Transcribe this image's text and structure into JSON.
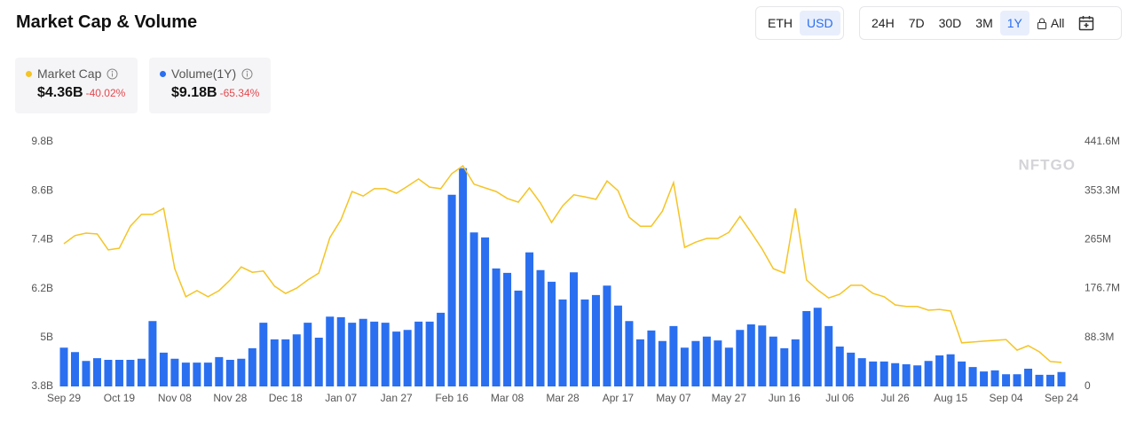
{
  "header": {
    "title": "Market Cap & Volume",
    "currency_options": [
      "ETH",
      "USD"
    ],
    "selected_currency": "USD",
    "range_options": [
      "24H",
      "7D",
      "30D",
      "3M",
      "1Y",
      "All"
    ],
    "selected_range": "1Y"
  },
  "summary": [
    {
      "value": "$4.36B",
      "change": "-40.02%"
    },
    {
      "value": "$9.18B",
      "change": "-65.34%"
    }
  ],
  "watermark": "NFTGO",
  "chart_data": {
    "type": "combo",
    "categories": [
      "Sep 29",
      null,
      null,
      null,
      null,
      "Oct 19",
      null,
      null,
      null,
      null,
      "Nov 08",
      null,
      null,
      null,
      null,
      "Nov 28",
      null,
      null,
      null,
      null,
      "Dec 18",
      null,
      null,
      null,
      null,
      "Jan 07",
      null,
      null,
      null,
      null,
      "Jan 27",
      null,
      null,
      null,
      null,
      "Feb 16",
      null,
      null,
      null,
      null,
      "Mar 08",
      null,
      null,
      null,
      null,
      "Mar 28",
      null,
      null,
      null,
      null,
      "Apr 17",
      null,
      null,
      null,
      null,
      "May 07",
      null,
      null,
      null,
      null,
      "May 27",
      null,
      null,
      null,
      null,
      "Jun 16",
      null,
      null,
      null,
      null,
      "Jul 06",
      null,
      null,
      null,
      null,
      "Jul 26",
      null,
      null,
      null,
      null,
      "Aug 15",
      null,
      null,
      null,
      null,
      "Sep 04",
      null,
      null,
      null,
      null,
      "Sep 24"
    ],
    "series": [
      {
        "name": "Market Cap",
        "type": "line",
        "axis": "y",
        "color": "#f5c425",
        "values": [
          7.3,
          7.5,
          7.56,
          7.54,
          7.15,
          7.19,
          7.73,
          8.02,
          8.02,
          8.17,
          6.69,
          6.0,
          6.15,
          6.0,
          6.15,
          6.41,
          6.73,
          6.6,
          6.63,
          6.26,
          6.08,
          6.21,
          6.41,
          6.58,
          7.45,
          7.89,
          8.58,
          8.47,
          8.65,
          8.65,
          8.54,
          8.71,
          8.89,
          8.69,
          8.65,
          9.02,
          9.21,
          8.76,
          8.67,
          8.58,
          8.41,
          8.32,
          8.67,
          8.3,
          7.82,
          8.23,
          8.5,
          8.45,
          8.39,
          8.84,
          8.6,
          7.95,
          7.73,
          7.73,
          8.1,
          8.8,
          7.21,
          7.34,
          7.43,
          7.43,
          7.58,
          7.97,
          7.58,
          7.17,
          6.69,
          6.58,
          8.17,
          6.41,
          6.17,
          5.97,
          6.06,
          6.28,
          6.28,
          6.08,
          6.0,
          5.8,
          5.76,
          5.76,
          5.67,
          5.69,
          5.65,
          4.87,
          4.89,
          4.91,
          4.93,
          4.95,
          4.69,
          4.8,
          4.65,
          4.41,
          4.39
        ]
      },
      {
        "name": "Volume(1Y)",
        "type": "bar",
        "axis": "y2",
        "color": "#2a6ff0",
        "values": [
          70,
          62,
          46,
          51,
          48,
          48,
          48,
          50,
          118,
          61,
          50,
          43,
          43,
          43,
          53,
          48,
          50,
          69,
          115,
          85,
          85,
          94,
          115,
          88,
          126,
          125,
          115,
          122,
          117,
          115,
          99,
          102,
          117,
          117,
          133,
          346,
          394,
          278,
          269,
          213,
          205,
          173,
          242,
          210,
          189,
          157,
          206,
          157,
          165,
          182,
          146,
          118,
          85,
          101,
          82,
          109,
          70,
          82,
          90,
          83,
          70,
          102,
          112,
          110,
          90,
          69,
          85,
          136,
          142,
          109,
          72,
          61,
          51,
          45,
          45,
          42,
          40,
          38,
          46,
          56,
          58,
          45,
          35,
          27,
          29,
          22,
          22,
          32,
          21,
          21,
          26
        ]
      }
    ],
    "ylim": [
      3.8,
      9.8
    ],
    "yticks": [
      {
        "value": 3.8,
        "label": "3.8B"
      },
      {
        "value": 5,
        "label": "5B"
      },
      {
        "value": 6.2,
        "label": "6.2B"
      },
      {
        "value": 7.4,
        "label": "7.4B"
      },
      {
        "value": 8.6,
        "label": "8.6B"
      },
      {
        "value": 9.8,
        "label": "9.8B"
      }
    ],
    "y2lim": [
      0,
      441.6
    ],
    "y2ticks": [
      0,
      {
        "value": 88.3,
        "label": "88.3M"
      },
      {
        "value": 176.7,
        "label": "176.7M"
      },
      {
        "value": 265,
        "label": "265M"
      },
      {
        "value": 353.3,
        "label": "353.3M"
      },
      {
        "value": 441.6,
        "label": "441.6M"
      }
    ],
    "grid": false
  }
}
